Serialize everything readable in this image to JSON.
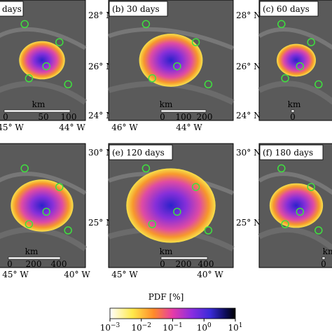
{
  "panels": [
    {
      "label": "days",
      "lat_ticks": [
        "28° N",
        "26° N",
        "24° N"
      ],
      "lon_ticks": [
        "45° W",
        "44° W"
      ],
      "scale": [
        "km",
        "0",
        "50",
        "100"
      ]
    },
    {
      "label": "(b) 30 days",
      "lat_ticks": [
        "28° N",
        "26° N",
        "24° N"
      ],
      "lon_ticks": [
        "46° W",
        "44° W"
      ],
      "scale": [
        "km",
        "0",
        "100",
        "200"
      ]
    },
    {
      "label": "(c) 60 days",
      "scale": [
        "km",
        "0"
      ]
    },
    {
      "label": "",
      "lat_ticks": [
        "30° N",
        "25° N"
      ],
      "lon_ticks": [
        "45° W",
        "40° W"
      ],
      "scale": [
        "km",
        "0",
        "200",
        "400"
      ]
    },
    {
      "label": "(e) 120 days",
      "lat_ticks": [
        "30° N",
        "25° N"
      ],
      "lon_ticks": [
        "45° W",
        "40° W"
      ],
      "scale": [
        "km",
        "0",
        "200",
        "400"
      ]
    },
    {
      "label": "(f) 180 days",
      "scale": [
        "km",
        "0"
      ]
    }
  ],
  "colorbar": {
    "label": "PDF [%]",
    "log": true,
    "lim": [
      0.001,
      10
    ],
    "ticks": [
      {
        "value": 0.001,
        "base": "10",
        "exponent": "−3"
      },
      {
        "value": 0.01,
        "base": "10",
        "exponent": "−2"
      },
      {
        "value": 0.1,
        "base": "10",
        "exponent": "−1"
      },
      {
        "value": 1,
        "base": "10",
        "exponent": "0"
      },
      {
        "value": 10,
        "base": "10",
        "exponent": "1"
      }
    ]
  }
}
